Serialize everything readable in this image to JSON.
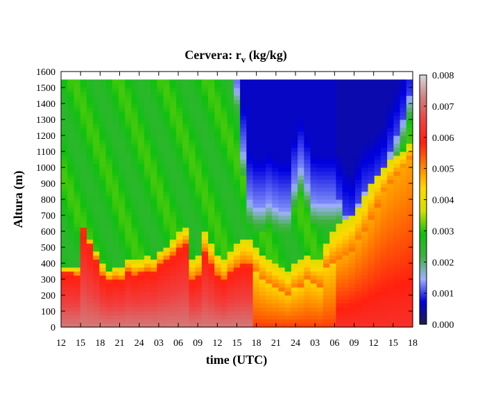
{
  "chart_data": {
    "type": "heatmap",
    "title": "Cervera: r",
    "title_sub": "v",
    "title_units": " (kg/kg)",
    "xlabel": "time (UTC)",
    "ylabel": "Altura (m)",
    "x_tick_labels": [
      "12",
      "15",
      "18",
      "21",
      "24",
      "03",
      "06",
      "09",
      "12",
      "15",
      "18",
      "21",
      "24",
      "03",
      "06",
      "09",
      "12",
      "15",
      "18"
    ],
    "x_range_hours": [
      0,
      54
    ],
    "y_ticks": [
      0,
      100,
      200,
      300,
      400,
      500,
      600,
      700,
      800,
      900,
      1000,
      1100,
      1200,
      1300,
      1400,
      1500,
      1600
    ],
    "ylim": [
      0,
      1600
    ],
    "colorbar_ticks": [
      "0.000",
      "0.001",
      "0.002",
      "0.003",
      "0.004",
      "0.005",
      "0.006",
      "0.007",
      "0.008"
    ],
    "colorbar_range": [
      0.0,
      0.008
    ],
    "colormap": [
      "#202040",
      "#0000e0",
      "#9fb0ff",
      "#40b040",
      "#10c010",
      "#d0e000",
      "#ffd800",
      "#ff8000",
      "#ff2010",
      "#f04040",
      "#d08080",
      "#d8d8d8"
    ],
    "data_top_m": 1550,
    "low_layer_top_m": [
      340,
      340,
      330,
      620,
      520,
      430,
      330,
      290,
      310,
      300,
      360,
      330,
      340,
      360,
      350,
      400,
      430,
      460,
      500,
      530,
      300,
      330,
      480,
      410,
      330,
      300,
      350,
      380,
      400,
      390,
      350,
      300,
      270,
      250,
      230,
      210,
      240,
      260,
      300,
      280,
      260,
      380,
      400,
      420,
      440,
      480,
      540,
      600,
      680,
      760,
      840,
      900,
      950,
      990,
      1050
    ],
    "dry_layer_bottom_m": [
      9999,
      9999,
      9999,
      9999,
      9999,
      9999,
      9999,
      9999,
      9999,
      9999,
      9999,
      9999,
      9999,
      9999,
      9999,
      9999,
      9999,
      9999,
      9999,
      9999,
      9999,
      9999,
      9999,
      9999,
      9999,
      9999,
      9999,
      1500,
      1100,
      800,
      760,
      760,
      790,
      760,
      740,
      740,
      900,
      1000,
      900,
      790,
      780,
      780,
      780,
      790,
      700,
      680,
      780,
      860,
      880,
      930,
      980,
      1100,
      1200,
      1300,
      1450
    ],
    "mixed_layer_top_m": [
      380,
      380,
      370,
      620,
      560,
      480,
      400,
      360,
      380,
      370,
      420,
      420,
      420,
      440,
      430,
      480,
      500,
      540,
      590,
      620,
      430,
      450,
      600,
      520,
      460,
      420,
      480,
      520,
      560,
      550,
      500,
      460,
      430,
      400,
      380,
      340,
      400,
      420,
      460,
      420,
      420,
      520,
      600,
      640,
      680,
      700,
      760,
      820,
      900,
      960,
      1000,
      1050,
      1080,
      1100,
      1150
    ]
  }
}
